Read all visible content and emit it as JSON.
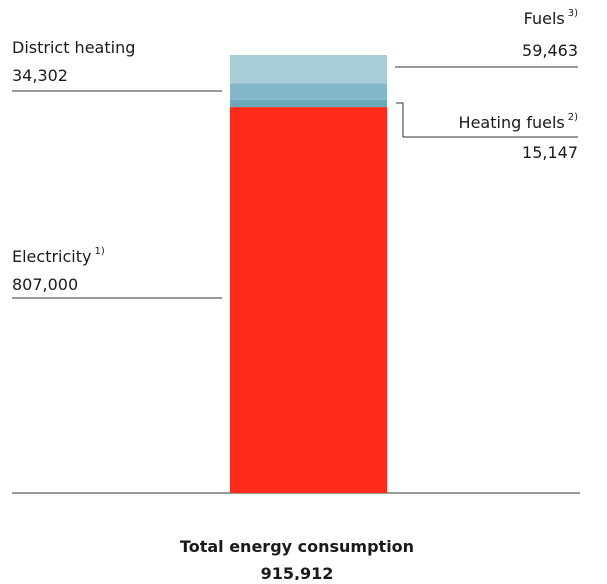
{
  "chart_data": {
    "type": "stacked-bar",
    "series": [
      {
        "name": "Electricity",
        "footnote": "1)",
        "color": "#ff2a1a",
        "values": [
          807000
        ],
        "value_labels": [
          "807,000"
        ]
      },
      {
        "name": "Heating fuels",
        "footnote": "2)",
        "color": "#6aa8ba",
        "values": [
          15147
        ],
        "value_labels": [
          "15,147"
        ]
      },
      {
        "name": "District heating",
        "color": "#84b8c8",
        "values": [
          34302
        ],
        "value_labels": [
          "34,302"
        ]
      },
      {
        "name": "Fuels",
        "footnote": "3)",
        "color": "#a8cdd8",
        "values": [
          59463
        ],
        "value_labels": [
          "59,463"
        ]
      }
    ],
    "total_label": "Total energy consumption",
    "total_value_label": "915,912"
  }
}
